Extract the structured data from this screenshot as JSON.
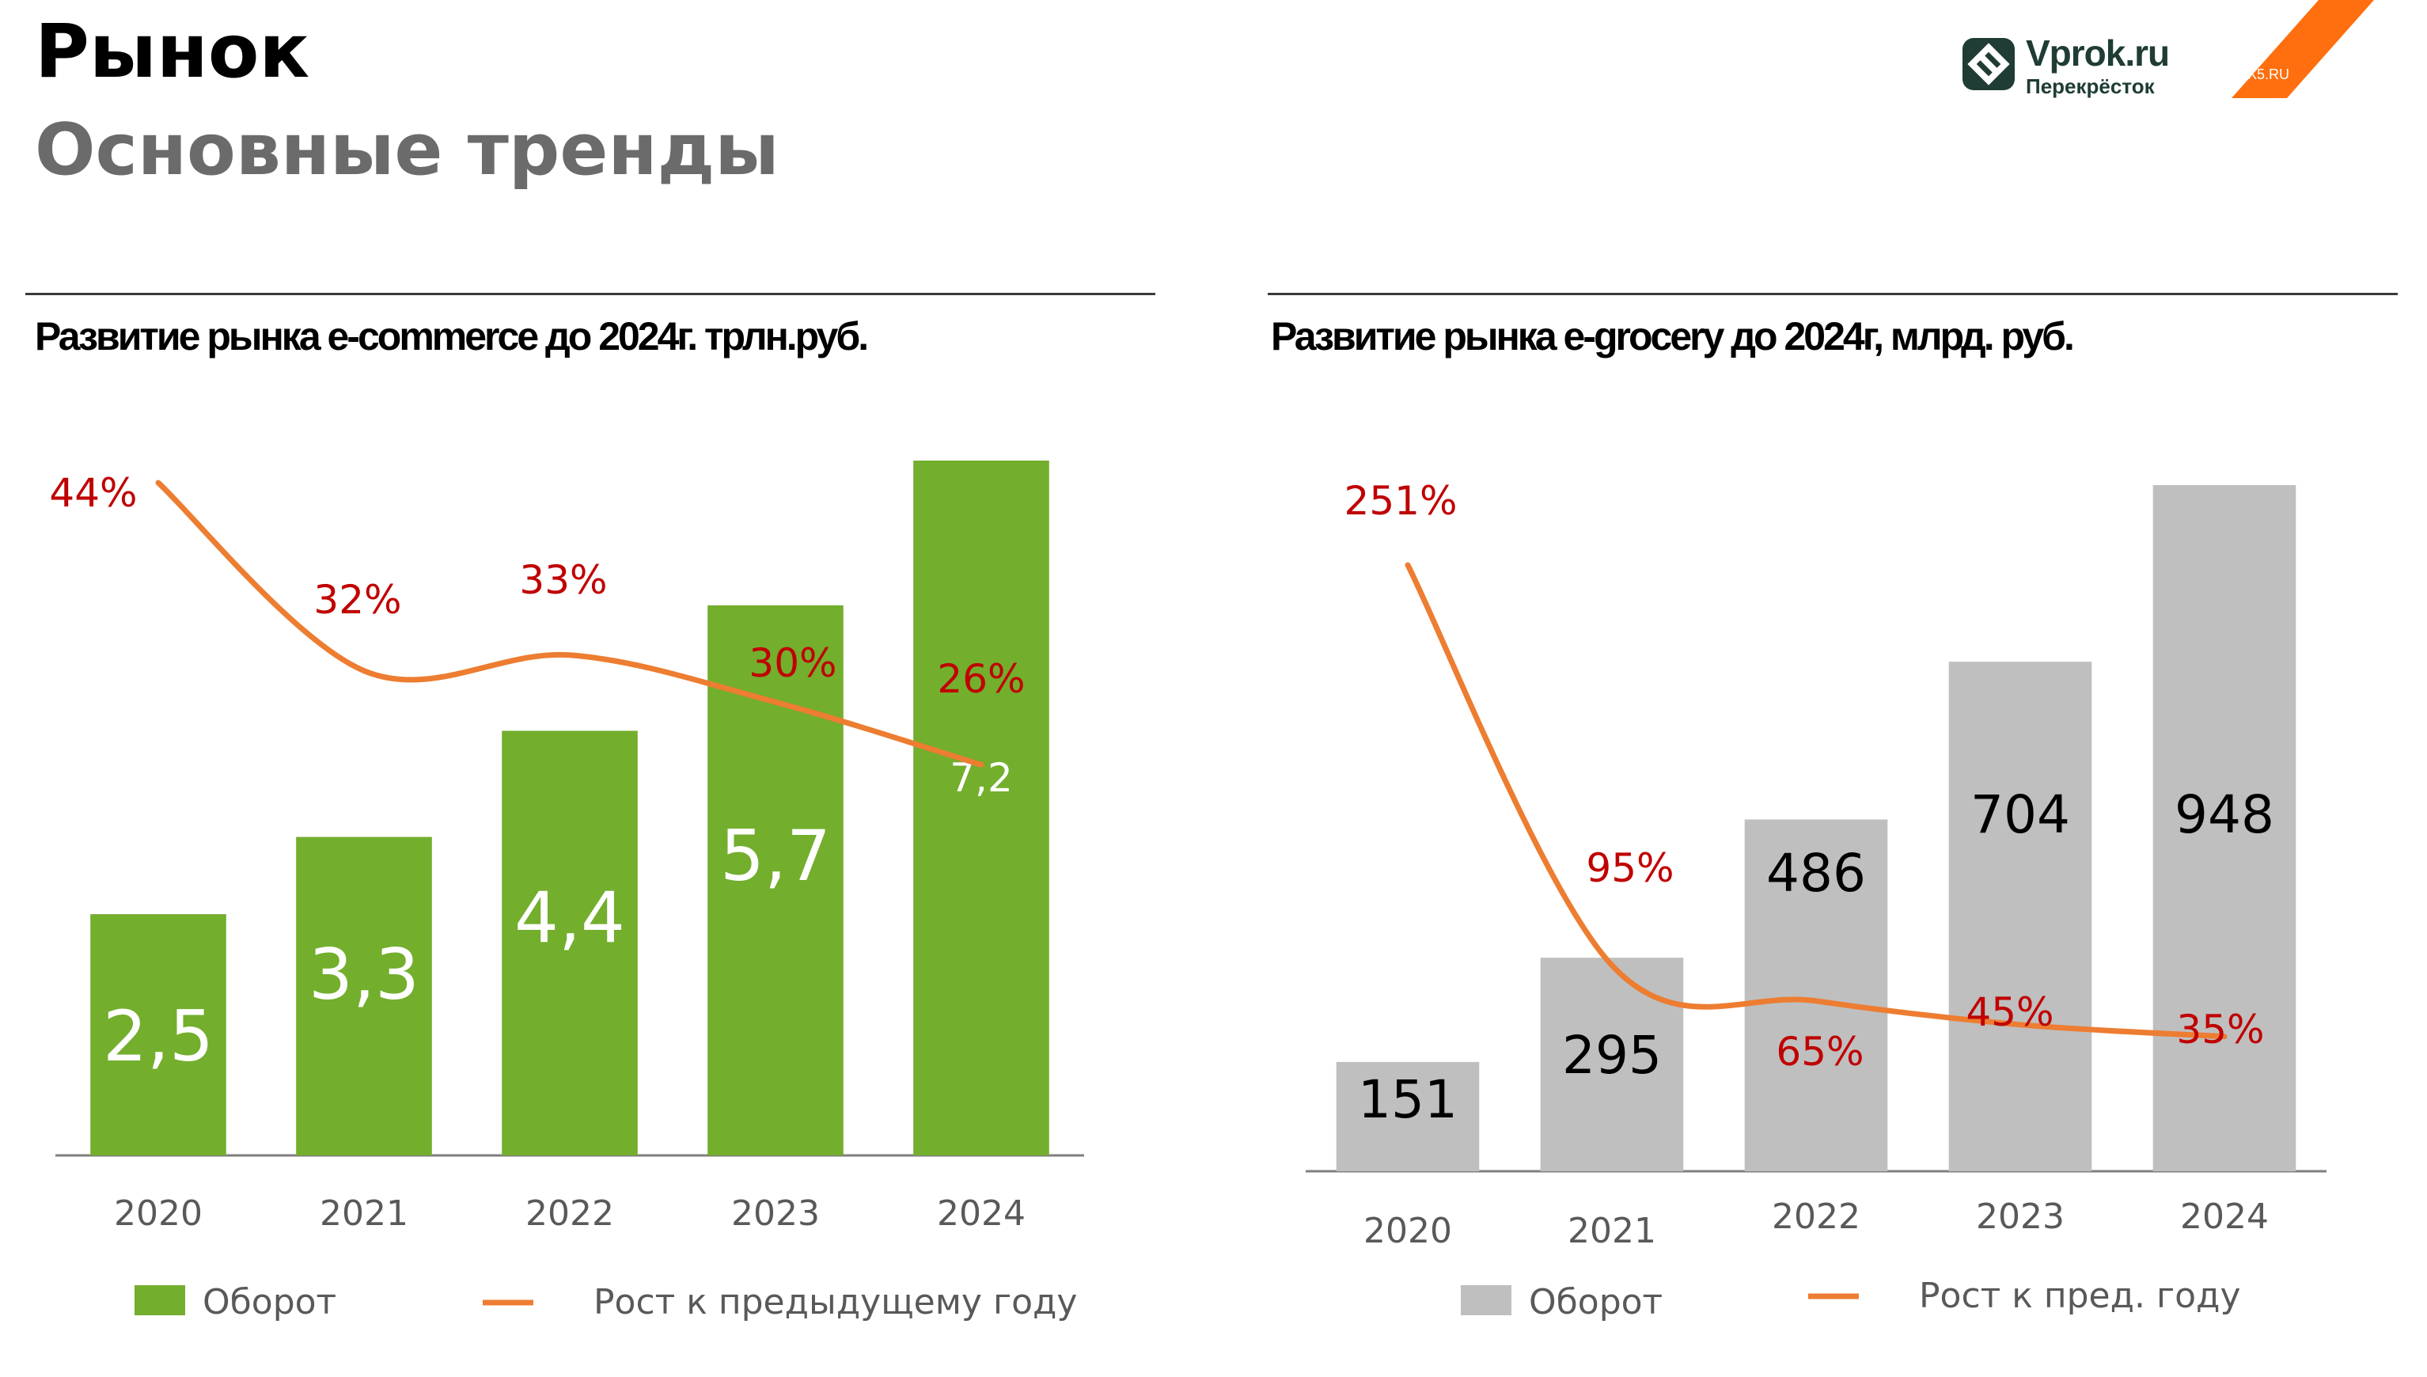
{
  "page": {
    "title": "Рынок",
    "subtitle": "Основные тренды"
  },
  "logo": {
    "brand_line1": "Vprok.ru",
    "brand_line2": "Перекрёсток",
    "partner_label": "X5.RU",
    "partner_color": "#ff6f0f",
    "brand_color": "#1f3c35"
  },
  "colors": {
    "ecommerce_bar": "#73ae2d",
    "grocery_bar": "#bfbfbf",
    "growth_line": "#ed7d31",
    "growth_label": "#c00000",
    "tick_text": "#595959"
  },
  "chart_data": [
    {
      "type": "bar",
      "title": "Развитие рынка e-commerce до 2024г. трлн.руб.",
      "categories": [
        "2020",
        "2021",
        "2022",
        "2023",
        "2024"
      ],
      "series": [
        {
          "name": "Оборот",
          "type": "bar",
          "values": [
            2.5,
            3.3,
            4.4,
            5.7,
            7.2
          ],
          "labels": [
            "2,5",
            "3,3",
            "4,4",
            "5,7",
            "7,2"
          ]
        },
        {
          "name": "Рост к предыдущему году",
          "type": "line",
          "values": [
            44,
            32,
            33,
            30,
            26
          ],
          "labels": [
            "44%",
            "32%",
            "33%",
            "30%",
            "26%"
          ]
        }
      ],
      "legend": "bottom"
    },
    {
      "type": "bar",
      "title": "Развитие рынка e-grocery до 2024г, млрд. руб.",
      "categories": [
        "2020",
        "2021",
        "2022",
        "2023",
        "2024"
      ],
      "series": [
        {
          "name": "Оборот",
          "type": "bar",
          "values": [
            151,
            295,
            486,
            704,
            948
          ],
          "labels": [
            "151",
            "295",
            "486",
            "704",
            "948"
          ]
        },
        {
          "name": "Рост к пред. году",
          "type": "line",
          "values": [
            251,
            95,
            65,
            45,
            35
          ],
          "labels": [
            "251%",
            "95%",
            "65%",
            "45%",
            "35%"
          ]
        }
      ],
      "legend": "bottom"
    }
  ]
}
